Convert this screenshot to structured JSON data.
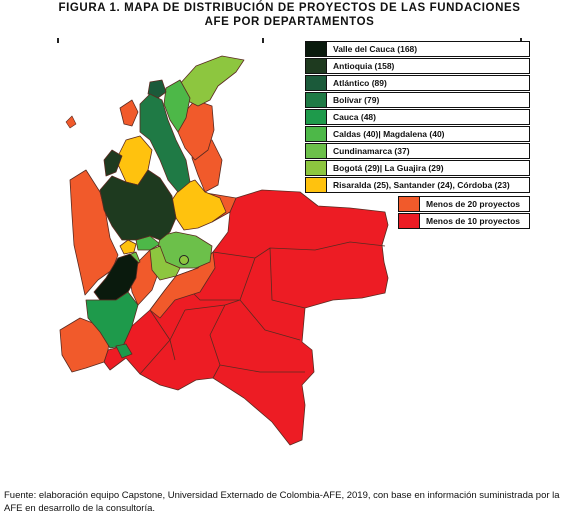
{
  "title_line1": "FIGURA 1. MAPA DE DISTRIBUCIÓN DE PROYECTOS DE LAS FUNDACIONES",
  "title_line2": "AFE POR DEPARTAMENTOS",
  "legend": [
    {
      "label": "Valle del Cauca (168)",
      "color": "#0a1a0d"
    },
    {
      "label": "Antioquia (158)",
      "color": "#1e3a1f"
    },
    {
      "label": "Atlántico (89)",
      "color": "#1b5a3a"
    },
    {
      "label": "Bolívar (79)",
      "color": "#1f7a45"
    },
    {
      "label": "Cauca (48)",
      "color": "#1e9a4b"
    },
    {
      "label": "Caldas (40)| Magdalena (40)",
      "color": "#4db848"
    },
    {
      "label": "Cundinamarca (37)",
      "color": "#6cc04a"
    },
    {
      "label": "Bogotá (29)| La Guajira (29)",
      "color": "#8dc63f"
    },
    {
      "label": "Risaralda (25), Santander (24), Córdoba (23)",
      "color": "#ffc20e"
    },
    {
      "label": "Menos de 20 proyectos",
      "color": "#f15a2b"
    },
    {
      "label": "Menos de 10 proyectos",
      "color": "#ed1c24"
    }
  ],
  "footer": "Fuente: elaboración equipo Capstone, Universidad Externado de Colombia-AFE, 2019, con base en información suministrada por la AFE en desarrollo de la consultoría."
}
